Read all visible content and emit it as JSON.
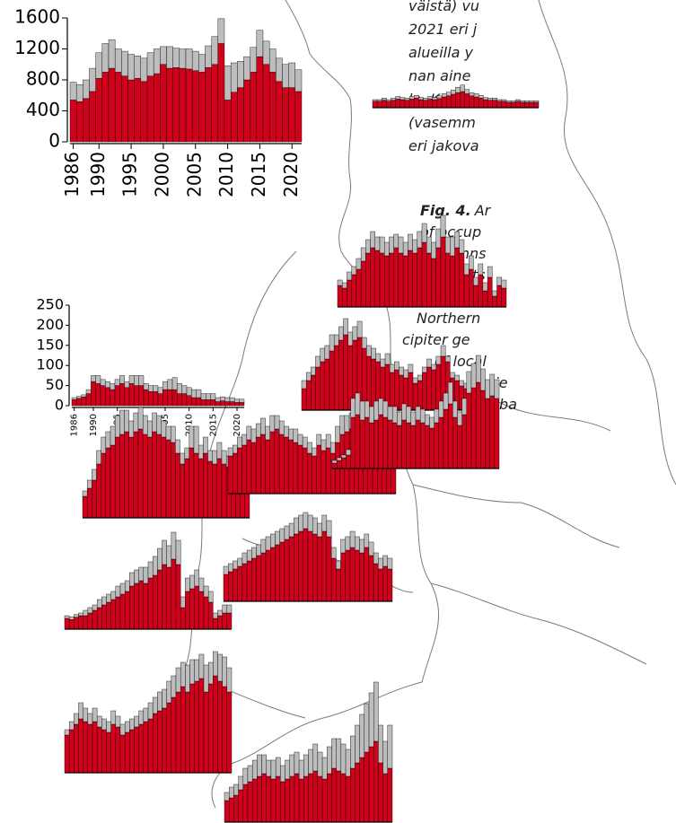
{
  "caption": {
    "fi_lines": [
      "väistä) vu",
      "2021 eri j",
      "alueilla y",
      "nan aine",
      "la. Koko",
      "(vasemm",
      "eri jakova"
    ],
    "en_label": "Fig. 4.",
    "en_lines": [
      "Ar",
      "of occup",
      "(columns",
      "attempts",
      "of the co",
      "Northern",
      "cipiter ge",
      "of local",
      "cietie",
      "ba"
    ]
  },
  "chart_data": [
    {
      "type": "bar",
      "stacked": true,
      "x": [
        1986,
        1987,
        1988,
        1989,
        1990,
        1991,
        1992,
        1993,
        1994,
        1995,
        1996,
        1997,
        1998,
        1999,
        2000,
        2001,
        2002,
        2003,
        2004,
        2005,
        2006,
        2007,
        2008,
        2009,
        2010,
        2011,
        2012,
        2013,
        2014,
        2015,
        2016,
        2017,
        2018,
        2019,
        2020,
        2021
      ],
      "xlim": [
        1985.5,
        2021.5
      ],
      "xticks": [
        1986,
        1990,
        1995,
        2000,
        2005,
        2010,
        2015,
        2020
      ],
      "ylim": [
        0,
        1600
      ],
      "yticks": [
        0,
        400,
        800,
        1200,
        1600
      ],
      "series": [
        {
          "color": "#d0021b",
          "values": [
            540,
            520,
            560,
            650,
            820,
            900,
            950,
            900,
            850,
            800,
            820,
            780,
            850,
            880,
            1000,
            950,
            960,
            950,
            940,
            920,
            900,
            960,
            1000,
            1270,
            540,
            640,
            700,
            800,
            900,
            1100,
            1000,
            900,
            780,
            700,
            700,
            650
          ]
        },
        {
          "color": "#bdbdbd",
          "values": [
            230,
            220,
            240,
            300,
            330,
            370,
            370,
            300,
            320,
            330,
            290,
            300,
            300,
            320,
            230,
            280,
            250,
            250,
            260,
            250,
            230,
            280,
            360,
            320,
            440,
            380,
            340,
            300,
            320,
            340,
            300,
            300,
            300,
            300,
            320,
            280
          ]
        }
      ]
    },
    {
      "type": "bar",
      "stacked": true,
      "x": [
        1986,
        1987,
        1988,
        1989,
        1990,
        1991,
        1992,
        1993,
        1994,
        1995,
        1996,
        1997,
        1998,
        1999,
        2000,
        2001,
        2002,
        2003,
        2004,
        2005,
        2006,
        2007,
        2008,
        2009,
        2010,
        2011,
        2012,
        2013,
        2014,
        2015,
        2016,
        2017,
        2018,
        2019,
        2020,
        2021
      ],
      "xlim": [
        1985.5,
        2021.5
      ],
      "xticks": [
        1986,
        1990,
        1995,
        2000,
        2005,
        2010,
        2015,
        2020
      ],
      "ylim": [
        0,
        250
      ],
      "yticks": [
        0,
        50,
        100,
        150,
        200,
        250
      ],
      "series": [
        {
          "color": "#d0021b",
          "values": [
            15,
            18,
            22,
            30,
            60,
            55,
            50,
            45,
            40,
            50,
            55,
            45,
            55,
            50,
            50,
            40,
            35,
            35,
            30,
            40,
            40,
            40,
            30,
            30,
            25,
            20,
            20,
            15,
            15,
            15,
            10,
            12,
            10,
            10,
            8,
            8
          ]
        },
        {
          "color": "#bdbdbd",
          "values": [
            5,
            5,
            5,
            10,
            15,
            20,
            15,
            15,
            15,
            15,
            20,
            15,
            20,
            25,
            25,
            15,
            15,
            15,
            15,
            20,
            25,
            30,
            25,
            20,
            20,
            20,
            20,
            15,
            15,
            15,
            10,
            10,
            10,
            10,
            8,
            8
          ]
        }
      ]
    },
    {
      "type": "bar",
      "stacked": true,
      "series": [
        {
          "color": "#d0021b",
          "values": [
            12,
            12,
            14,
            12,
            14,
            16,
            15,
            14,
            16,
            18,
            15,
            14,
            16,
            15,
            17,
            20,
            22,
            25,
            28,
            30,
            26,
            22,
            20,
            18,
            15,
            14,
            14,
            12,
            12,
            10,
            10,
            12,
            10,
            10,
            10,
            10
          ]
        },
        {
          "color": "#bdbdbd",
          "values": [
            3,
            3,
            4,
            3,
            4,
            5,
            4,
            4,
            5,
            5,
            4,
            4,
            5,
            4,
            5,
            6,
            7,
            8,
            10,
            12,
            8,
            6,
            6,
            5,
            4,
            4,
            4,
            3,
            3,
            3,
            3,
            3,
            3,
            3,
            3,
            3
          ]
        }
      ]
    },
    {
      "type": "bar",
      "stacked": true,
      "series": [
        {
          "color": "#d0021b",
          "values": [
            40,
            35,
            50,
            60,
            70,
            85,
            100,
            110,
            105,
            100,
            95,
            100,
            110,
            100,
            95,
            105,
            100,
            110,
            120,
            100,
            90,
            110,
            130,
            100,
            95,
            110,
            100,
            60,
            70,
            40,
            60,
            30,
            55,
            20,
            40,
            35
          ]
        },
        {
          "color": "#bdbdbd",
          "values": [
            10,
            10,
            15,
            15,
            20,
            25,
            25,
            30,
            25,
            30,
            25,
            30,
            25,
            30,
            25,
            30,
            25,
            30,
            35,
            30,
            30,
            35,
            40,
            30,
            35,
            30,
            25,
            20,
            25,
            15,
            20,
            15,
            20,
            10,
            15,
            15
          ]
        }
      ]
    },
    {
      "type": "bar",
      "stacked": true,
      "series": [
        {
          "color": "#d0021b",
          "values": [
            40,
            55,
            65,
            80,
            90,
            95,
            110,
            120,
            130,
            140,
            120,
            130,
            135,
            115,
            100,
            95,
            90,
            80,
            85,
            70,
            75,
            65,
            60,
            70,
            50,
            55,
            70,
            80,
            75,
            85,
            100,
            90,
            60,
            55,
            45,
            40
          ]
        },
        {
          "color": "#bdbdbd",
          "values": [
            15,
            15,
            15,
            20,
            25,
            25,
            30,
            20,
            25,
            30,
            25,
            25,
            30,
            20,
            20,
            20,
            15,
            15,
            20,
            15,
            15,
            15,
            15,
            15,
            10,
            10,
            10,
            15,
            10,
            15,
            20,
            10,
            10,
            10,
            10,
            10
          ]
        }
      ]
    },
    {
      "type": "bar",
      "stacked": true,
      "series": [
        {
          "color": "#d0021b",
          "values": [
            40,
            55,
            70,
            100,
            120,
            130,
            135,
            150,
            155,
            160,
            150,
            160,
            165,
            155,
            150,
            160,
            155,
            150,
            145,
            140,
            120,
            100,
            110,
            130,
            120,
            110,
            120,
            105,
            100,
            110,
            100,
            95,
            80,
            70,
            65,
            60
          ]
        },
        {
          "color": "#bdbdbd",
          "values": [
            10,
            15,
            20,
            25,
            30,
            30,
            35,
            40,
            45,
            40,
            30,
            35,
            40,
            35,
            30,
            35,
            35,
            30,
            25,
            30,
            25,
            20,
            20,
            40,
            50,
            25,
            30,
            20,
            25,
            30,
            25,
            20,
            20,
            15,
            10,
            10
          ]
        }
      ]
    },
    {
      "type": "bar",
      "stacked": true,
      "series": [
        {
          "color": "#d0021b",
          "values": [
            70,
            75,
            85,
            90,
            100,
            95,
            105,
            110,
            100,
            115,
            120,
            110,
            105,
            100,
            95,
            90,
            85,
            75,
            70,
            90,
            80,
            85,
            75,
            95,
            110,
            115,
            120,
            110,
            100,
            90,
            85,
            80,
            70,
            60,
            55,
            50
          ]
        },
        {
          "color": "#bdbdbd",
          "values": [
            15,
            15,
            20,
            20,
            25,
            25,
            25,
            30,
            25,
            30,
            25,
            25,
            20,
            20,
            25,
            20,
            20,
            20,
            15,
            20,
            20,
            25,
            20,
            30,
            35,
            30,
            30,
            25,
            25,
            20,
            20,
            20,
            15,
            15,
            15,
            15
          ]
        }
      ]
    },
    {
      "type": "bar",
      "stacked": true,
      "series": [
        {
          "color": "#d0021b",
          "values": [
            10,
            15,
            20,
            25,
            95,
            100,
            90,
            95,
            85,
            90,
            100,
            95,
            90,
            85,
            80,
            90,
            85,
            80,
            90,
            85,
            80,
            75,
            85,
            95,
            110,
            120,
            95,
            80,
            100,
            140,
            150,
            160,
            145,
            130,
            135,
            130
          ]
        },
        {
          "color": "#bdbdbd",
          "values": [
            5,
            5,
            5,
            10,
            35,
            40,
            35,
            30,
            30,
            35,
            30,
            30,
            25,
            30,
            25,
            30,
            30,
            25,
            25,
            25,
            20,
            20,
            25,
            30,
            30,
            40,
            30,
            25,
            30,
            40,
            45,
            50,
            40,
            35,
            40,
            35
          ]
        }
      ]
    },
    {
      "type": "bar",
      "stacked": true,
      "series": [
        {
          "color": "#d0021b",
          "values": [
            50,
            55,
            60,
            65,
            70,
            75,
            80,
            85,
            90,
            95,
            100,
            105,
            110,
            115,
            120,
            125,
            130,
            135,
            130,
            125,
            120,
            130,
            120,
            80,
            60,
            90,
            95,
            100,
            95,
            90,
            100,
            85,
            70,
            60,
            65,
            60
          ]
        },
        {
          "color": "#bdbdbd",
          "values": [
            15,
            15,
            15,
            15,
            20,
            20,
            20,
            20,
            25,
            25,
            25,
            25,
            25,
            25,
            25,
            30,
            30,
            30,
            30,
            30,
            25,
            30,
            30,
            20,
            15,
            25,
            25,
            30,
            25,
            25,
            25,
            25,
            20,
            20,
            20,
            20
          ]
        }
      ]
    },
    {
      "type": "bar",
      "stacked": true,
      "series": [
        {
          "color": "#d0021b",
          "values": [
            20,
            18,
            22,
            25,
            25,
            30,
            35,
            40,
            45,
            50,
            55,
            60,
            65,
            70,
            80,
            85,
            90,
            85,
            95,
            100,
            110,
            120,
            115,
            130,
            120,
            40,
            70,
            75,
            80,
            70,
            60,
            50,
            20,
            25,
            30,
            30
          ]
        },
        {
          "color": "#bdbdbd",
          "values": [
            5,
            5,
            5,
            5,
            10,
            10,
            10,
            15,
            15,
            15,
            15,
            20,
            20,
            20,
            25,
            25,
            25,
            30,
            30,
            35,
            40,
            45,
            40,
            50,
            45,
            20,
            25,
            25,
            30,
            25,
            20,
            20,
            10,
            10,
            15,
            15
          ]
        }
      ]
    },
    {
      "type": "bar",
      "stacked": true,
      "series": [
        {
          "color": "#d0021b",
          "values": [
            70,
            80,
            90,
            100,
            95,
            90,
            95,
            85,
            80,
            75,
            90,
            85,
            70,
            75,
            80,
            85,
            90,
            95,
            100,
            110,
            115,
            120,
            130,
            140,
            150,
            160,
            150,
            165,
            170,
            175,
            150,
            165,
            180,
            170,
            160,
            150
          ]
        },
        {
          "color": "#bdbdbd",
          "values": [
            10,
            15,
            20,
            30,
            25,
            20,
            25,
            20,
            20,
            20,
            25,
            20,
            20,
            20,
            20,
            20,
            25,
            25,
            30,
            30,
            35,
            35,
            40,
            40,
            45,
            45,
            50,
            45,
            40,
            45,
            50,
            40,
            45,
            50,
            55,
            45
          ]
        }
      ]
    },
    {
      "type": "bar",
      "stacked": true,
      "series": [
        {
          "color": "#d0021b",
          "values": [
            40,
            45,
            50,
            60,
            70,
            75,
            80,
            85,
            90,
            85,
            80,
            85,
            75,
            80,
            85,
            90,
            80,
            85,
            90,
            95,
            85,
            80,
            90,
            100,
            95,
            90,
            85,
            100,
            110,
            120,
            130,
            140,
            150,
            110,
            90,
            100
          ]
        },
        {
          "color": "#bdbdbd",
          "values": [
            15,
            20,
            20,
            25,
            30,
            30,
            35,
            40,
            35,
            30,
            35,
            35,
            30,
            35,
            40,
            40,
            35,
            40,
            45,
            50,
            45,
            40,
            50,
            55,
            60,
            55,
            50,
            60,
            70,
            80,
            90,
            100,
            110,
            70,
            60,
            80
          ]
        }
      ]
    }
  ]
}
